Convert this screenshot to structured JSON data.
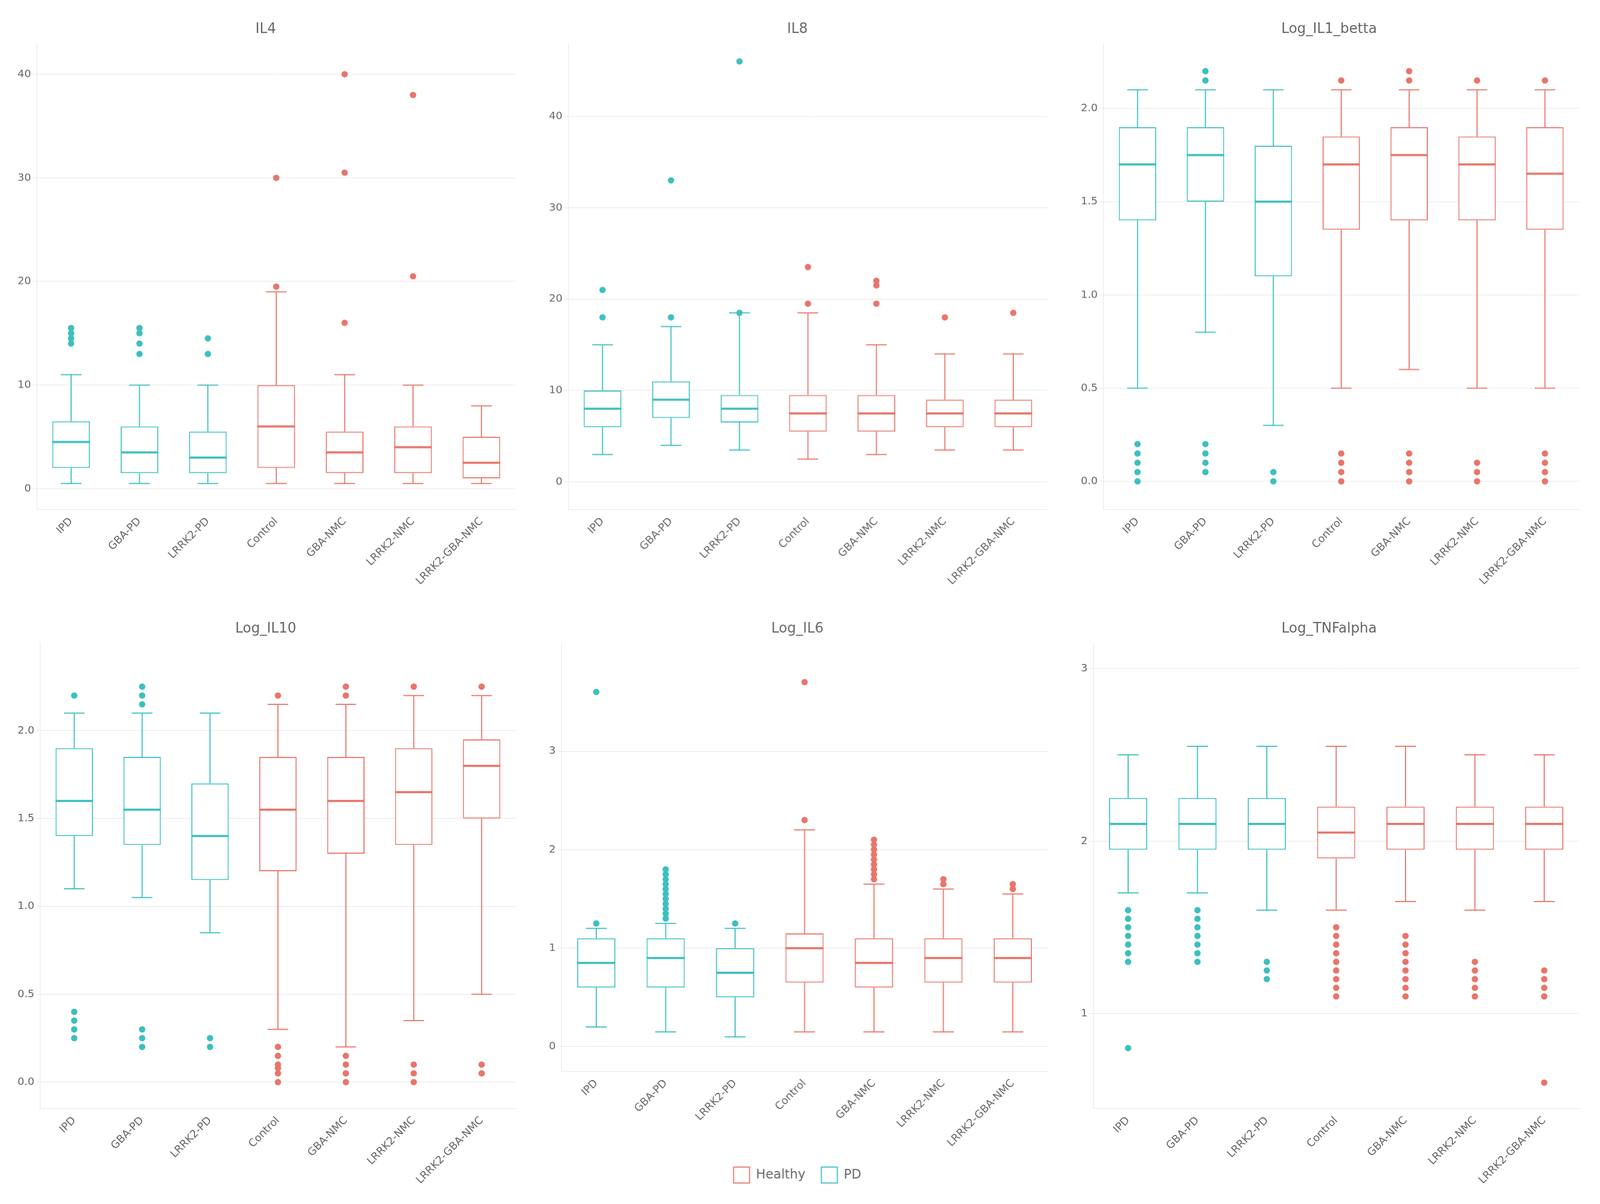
{
  "chart_data": [
    {
      "type": "box",
      "title": "IL4",
      "categories": [
        "IPD",
        "GBA-PD",
        "LRRK2-PD",
        "Control",
        "GBA-NMC",
        "LRRK2-NMC",
        "LRRK2-GBA-NMC"
      ],
      "series": [
        {
          "name": "Healthy",
          "color": "#e8756a",
          "values": [
            null,
            null,
            null,
            {
              "median": 6.0,
              "q1": 2.0,
              "q3": 10.0,
              "whislo": 0.5,
              "whishi": 19.0,
              "outliers": [
                19.5,
                30.0
              ]
            },
            {
              "median": 3.5,
              "q1": 1.5,
              "q3": 5.5,
              "whislo": 0.5,
              "whishi": 11.0,
              "outliers": [
                16.0,
                30.5,
                40.0
              ]
            },
            {
              "median": 4.0,
              "q1": 1.5,
              "q3": 6.0,
              "whislo": 0.5,
              "whishi": 10.0,
              "outliers": [
                20.5,
                38.0
              ]
            },
            {
              "median": 2.5,
              "q1": 1.0,
              "q3": 5.0,
              "whislo": 0.5,
              "whishi": 8.0,
              "outliers": []
            }
          ]
        },
        {
          "name": "PD",
          "color": "#3dbfbf",
          "values": [
            {
              "median": 4.5,
              "q1": 2.0,
              "q3": 6.5,
              "whislo": 0.5,
              "whishi": 11.0,
              "outliers": [
                14.0,
                14.5,
                15.0,
                15.5
              ]
            },
            {
              "median": 3.5,
              "q1": 1.5,
              "q3": 6.0,
              "whislo": 0.5,
              "whishi": 10.0,
              "outliers": [
                13.0,
                14.0,
                15.0,
                15.5
              ]
            },
            {
              "median": 3.0,
              "q1": 1.5,
              "q3": 5.5,
              "whislo": 0.5,
              "whishi": 10.0,
              "outliers": [
                13.0,
                14.5
              ]
            },
            null,
            null,
            null,
            null
          ]
        }
      ],
      "ylim": [
        -2,
        43
      ],
      "yticks": [
        0,
        10,
        20,
        30,
        40
      ],
      "grid": true,
      "legend": false
    },
    {
      "type": "box",
      "title": "IL8",
      "categories": [
        "IPD",
        "GBA-PD",
        "LRRK2-PD",
        "Control",
        "GBA-NMC",
        "LRRK2-NMC",
        "LRRK2-GBA-NMC"
      ],
      "series": [
        {
          "name": "Healthy",
          "color": "#e8756a",
          "values": [
            null,
            null,
            null,
            {
              "median": 7.5,
              "q1": 5.5,
              "q3": 9.5,
              "whislo": 2.5,
              "whishi": 18.5,
              "outliers": [
                19.5,
                23.5
              ]
            },
            {
              "median": 7.5,
              "q1": 5.5,
              "q3": 9.5,
              "whislo": 3.0,
              "whishi": 15.0,
              "outliers": [
                19.5,
                21.5,
                22.0
              ]
            },
            {
              "median": 7.5,
              "q1": 6.0,
              "q3": 9.0,
              "whislo": 3.5,
              "whishi": 14.0,
              "outliers": [
                18.0
              ]
            },
            {
              "median": 7.5,
              "q1": 6.0,
              "q3": 9.0,
              "whislo": 3.5,
              "whishi": 14.0,
              "outliers": [
                18.5
              ]
            }
          ]
        },
        {
          "name": "PD",
          "color": "#3dbfbf",
          "values": [
            {
              "median": 8.0,
              "q1": 6.0,
              "q3": 10.0,
              "whislo": 3.0,
              "whishi": 15.0,
              "outliers": [
                18.0,
                21.0
              ]
            },
            {
              "median": 9.0,
              "q1": 7.0,
              "q3": 11.0,
              "whislo": 4.0,
              "whishi": 17.0,
              "outliers": [
                18.0,
                33.0
              ]
            },
            {
              "median": 8.0,
              "q1": 6.5,
              "q3": 9.5,
              "whislo": 3.5,
              "whishi": 18.5,
              "outliers": [
                18.5,
                46.0
              ]
            },
            null,
            null,
            null,
            null
          ]
        }
      ],
      "ylim": [
        -3,
        48
      ],
      "yticks": [
        0,
        10,
        20,
        30,
        40
      ],
      "grid": true,
      "legend": false
    },
    {
      "type": "box",
      "title": "Log_IL1_betta",
      "categories": [
        "IPD",
        "GBA-PD",
        "LRRK2-PD",
        "Control",
        "GBA-NMC",
        "LRRK2-NMC",
        "LRRK2-GBA-NMC"
      ],
      "series": [
        {
          "name": "Healthy",
          "color": "#e8756a",
          "values": [
            null,
            null,
            null,
            {
              "median": 1.7,
              "q1": 1.35,
              "q3": 1.85,
              "whislo": 0.5,
              "whishi": 2.1,
              "outliers": [
                0.0,
                0.05,
                0.1,
                0.15,
                2.15
              ]
            },
            {
              "median": 1.75,
              "q1": 1.4,
              "q3": 1.9,
              "whislo": 0.6,
              "whishi": 2.1,
              "outliers": [
                0.0,
                0.05,
                0.1,
                0.15,
                2.15,
                2.2
              ]
            },
            {
              "median": 1.7,
              "q1": 1.4,
              "q3": 1.85,
              "whislo": 0.5,
              "whishi": 2.1,
              "outliers": [
                0.0,
                0.05,
                0.1,
                2.15
              ]
            },
            {
              "median": 1.65,
              "q1": 1.35,
              "q3": 1.9,
              "whislo": 0.5,
              "whishi": 2.1,
              "outliers": [
                0.0,
                0.05,
                0.1,
                0.15,
                2.15
              ]
            }
          ]
        },
        {
          "name": "PD",
          "color": "#3dbfbf",
          "values": [
            {
              "median": 1.7,
              "q1": 1.4,
              "q3": 1.9,
              "whislo": 0.5,
              "whishi": 2.1,
              "outliers": [
                0.0,
                0.05,
                0.1,
                0.15,
                0.2
              ]
            },
            {
              "median": 1.75,
              "q1": 1.5,
              "q3": 1.9,
              "whislo": 0.8,
              "whishi": 2.1,
              "outliers": [
                0.05,
                0.1,
                0.15,
                0.2,
                2.15,
                2.2
              ]
            },
            {
              "median": 1.5,
              "q1": 1.1,
              "q3": 1.8,
              "whislo": 0.3,
              "whishi": 2.1,
              "outliers": [
                0.0,
                0.05
              ]
            },
            null,
            null,
            null,
            null
          ]
        }
      ],
      "ylim": [
        -0.15,
        2.35
      ],
      "yticks": [
        {
          "value": 0.0,
          "label": "0.0"
        },
        {
          "value": 0.5,
          "label": "0.5"
        },
        {
          "value": 1.0,
          "label": "1.0"
        },
        {
          "value": 1.5,
          "label": "1.5"
        },
        {
          "value": 2.0,
          "label": "2.0"
        }
      ],
      "grid": true,
      "legend": false
    },
    {
      "type": "box",
      "title": "Log_IL10",
      "categories": [
        "IPD",
        "GBA-PD",
        "LRRK2-PD",
        "Control",
        "GBA-NMC",
        "LRRK2-NMC",
        "LRRK2-GBA-NMC"
      ],
      "series": [
        {
          "name": "Healthy",
          "color": "#e8756a",
          "values": [
            null,
            null,
            null,
            {
              "median": 1.55,
              "q1": 1.2,
              "q3": 1.85,
              "whislo": 0.3,
              "whishi": 2.15,
              "outliers": [
                0.0,
                0.05,
                0.08,
                0.1,
                0.15,
                0.2,
                2.2
              ]
            },
            {
              "median": 1.6,
              "q1": 1.3,
              "q3": 1.85,
              "whislo": 0.2,
              "whishi": 2.15,
              "outliers": [
                0.0,
                0.05,
                0.1,
                0.15,
                2.2,
                2.25
              ]
            },
            {
              "median": 1.65,
              "q1": 1.35,
              "q3": 1.9,
              "whislo": 0.35,
              "whishi": 2.2,
              "outliers": [
                0.0,
                0.05,
                0.1,
                2.25
              ]
            },
            {
              "median": 1.8,
              "q1": 1.5,
              "q3": 1.95,
              "whislo": 0.5,
              "whishi": 2.2,
              "outliers": [
                0.05,
                0.1,
                2.25
              ]
            }
          ]
        },
        {
          "name": "PD",
          "color": "#3dbfbf",
          "values": [
            {
              "median": 1.6,
              "q1": 1.4,
              "q3": 1.9,
              "whislo": 1.1,
              "whishi": 2.1,
              "outliers": [
                0.25,
                0.3,
                0.35,
                0.4,
                2.2
              ]
            },
            {
              "median": 1.55,
              "q1": 1.35,
              "q3": 1.85,
              "whislo": 1.05,
              "whishi": 2.1,
              "outliers": [
                0.2,
                0.25,
                0.3,
                2.15,
                2.2,
                2.25
              ]
            },
            {
              "median": 1.4,
              "q1": 1.15,
              "q3": 1.7,
              "whislo": 0.85,
              "whishi": 2.1,
              "outliers": [
                0.2,
                0.25
              ]
            },
            null,
            null,
            null,
            null
          ]
        }
      ],
      "ylim": [
        -0.15,
        2.5
      ],
      "yticks": [
        {
          "value": 0.0,
          "label": "0.0"
        },
        {
          "value": 0.5,
          "label": "0.5"
        },
        {
          "value": 1.0,
          "label": "1.0"
        },
        {
          "value": 1.5,
          "label": "1.5"
        },
        {
          "value": 2.0,
          "label": "2.0"
        }
      ],
      "grid": true,
      "legend": false
    },
    {
      "type": "box",
      "title": "Log_IL6",
      "categories": [
        "IPD",
        "GBA-PD",
        "LRRK2-PD",
        "Control",
        "GBA-NMC",
        "LRRK2-NMC",
        "LRRK2-GBA-NMC"
      ],
      "series": [
        {
          "name": "Healthy",
          "color": "#e8756a",
          "values": [
            null,
            null,
            null,
            {
              "median": 1.0,
              "q1": 0.65,
              "q3": 1.15,
              "whislo": 0.15,
              "whishi": 2.2,
              "outliers": [
                2.3,
                3.7
              ]
            },
            {
              "median": 0.85,
              "q1": 0.6,
              "q3": 1.1,
              "whislo": 0.15,
              "whishi": 1.65,
              "outliers": [
                1.7,
                1.75,
                1.8,
                1.85,
                1.9,
                1.95,
                2.0,
                2.05,
                2.1
              ]
            },
            {
              "median": 0.9,
              "q1": 0.65,
              "q3": 1.1,
              "whislo": 0.15,
              "whishi": 1.6,
              "outliers": [
                1.65,
                1.7
              ]
            },
            {
              "median": 0.9,
              "q1": 0.65,
              "q3": 1.1,
              "whislo": 0.15,
              "whishi": 1.55,
              "outliers": [
                1.6,
                1.65
              ]
            }
          ]
        },
        {
          "name": "PD",
          "color": "#3dbfbf",
          "values": [
            {
              "median": 0.85,
              "q1": 0.6,
              "q3": 1.1,
              "whislo": 0.2,
              "whishi": 1.2,
              "outliers": [
                1.25,
                3.6
              ]
            },
            {
              "median": 0.9,
              "q1": 0.6,
              "q3": 1.1,
              "whislo": 0.15,
              "whishi": 1.25,
              "outliers": [
                1.3,
                1.35,
                1.4,
                1.45,
                1.5,
                1.55,
                1.6,
                1.65,
                1.7,
                1.75,
                1.8
              ]
            },
            {
              "median": 0.75,
              "q1": 0.5,
              "q3": 1.0,
              "whislo": 0.1,
              "whishi": 1.2,
              "outliers": [
                1.25
              ]
            },
            null,
            null,
            null,
            null
          ]
        }
      ],
      "ylim": [
        -0.25,
        4.1
      ],
      "yticks": [
        0,
        1,
        2,
        3
      ],
      "grid": true,
      "legend": "bottom"
    },
    {
      "type": "box",
      "title": "Log_TNFalpha",
      "categories": [
        "IPD",
        "GBA-PD",
        "LRRK2-PD",
        "Control",
        "GBA-NMC",
        "LRRK2-NMC",
        "LRRK2-GBA-NMC"
      ],
      "series": [
        {
          "name": "Healthy",
          "color": "#e8756a",
          "values": [
            null,
            null,
            null,
            {
              "median": 2.05,
              "q1": 1.9,
              "q3": 2.2,
              "whislo": 1.6,
              "whishi": 2.55,
              "outliers": [
                1.1,
                1.15,
                1.2,
                1.25,
                1.3,
                1.35,
                1.4,
                1.45,
                1.5
              ]
            },
            {
              "median": 2.1,
              "q1": 1.95,
              "q3": 2.2,
              "whislo": 1.65,
              "whishi": 2.55,
              "outliers": [
                1.1,
                1.15,
                1.2,
                1.25,
                1.3,
                1.35,
                1.4,
                1.45
              ]
            },
            {
              "median": 2.1,
              "q1": 1.95,
              "q3": 2.2,
              "whislo": 1.6,
              "whishi": 2.5,
              "outliers": [
                1.1,
                1.15,
                1.2,
                1.25,
                1.3
              ]
            },
            {
              "median": 2.1,
              "q1": 1.95,
              "q3": 2.2,
              "whislo": 1.65,
              "whishi": 2.5,
              "outliers": [
                0.6,
                1.1,
                1.15,
                1.2,
                1.25
              ]
            }
          ]
        },
        {
          "name": "PD",
          "color": "#3dbfbf",
          "values": [
            {
              "median": 2.1,
              "q1": 1.95,
              "q3": 2.25,
              "whislo": 1.7,
              "whishi": 2.5,
              "outliers": [
                0.8,
                1.3,
                1.35,
                1.4,
                1.45,
                1.5,
                1.55,
                1.6
              ]
            },
            {
              "median": 2.1,
              "q1": 1.95,
              "q3": 2.25,
              "whislo": 1.7,
              "whishi": 2.55,
              "outliers": [
                1.3,
                1.35,
                1.4,
                1.45,
                1.5,
                1.55,
                1.6
              ]
            },
            {
              "median": 2.1,
              "q1": 1.95,
              "q3": 2.25,
              "whislo": 1.6,
              "whishi": 2.55,
              "outliers": [
                1.2,
                1.25,
                1.3
              ]
            },
            null,
            null,
            null,
            null
          ]
        }
      ],
      "ylim": [
        0.45,
        3.15
      ],
      "yticks": [
        1,
        2,
        3
      ],
      "grid": true,
      "legend": false
    }
  ]
}
